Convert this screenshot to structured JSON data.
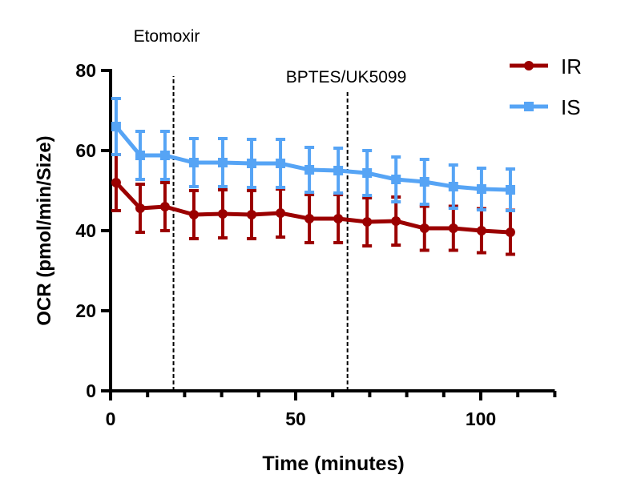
{
  "chart_data": {
    "type": "line",
    "xlabel": "Time (minutes)",
    "ylabel": "OCR (pmol/min/Size)",
    "xlim": [
      0,
      120
    ],
    "ylim": [
      0,
      80
    ],
    "xticks": [
      0,
      50,
      100
    ],
    "yticks": [
      0,
      20,
      40,
      60,
      80
    ],
    "grid": false,
    "legend_position": "top-right",
    "annotations": [
      {
        "label": "Etomoxir",
        "x": 17
      },
      {
        "label": "BPTES/UK5099",
        "x": 64
      }
    ],
    "x": [
      1.5,
      8,
      14.7,
      22.5,
      30.3,
      38.1,
      45.9,
      53.7,
      61.5,
      69.3,
      77.1,
      84.8,
      92.6,
      100.2,
      108
    ],
    "series": [
      {
        "name": "IR",
        "color": "#9b0000",
        "marker": "circle",
        "values": [
          52,
          45.6,
          46,
          44,
          44.2,
          44,
          44.4,
          43,
          43,
          42.2,
          42.4,
          40.6,
          40.6,
          40,
          39.6
        ],
        "error": [
          7,
          6,
          6,
          6,
          6,
          6,
          6,
          6,
          6,
          6,
          6,
          5.5,
          5.5,
          5.5,
          5.5
        ]
      },
      {
        "name": "IS",
        "color": "#56a4f5",
        "marker": "square",
        "values": [
          66,
          58.8,
          58.8,
          57,
          57,
          56.8,
          56.8,
          55.2,
          55,
          54.4,
          52.8,
          52.2,
          51,
          50.4,
          50.2
        ],
        "error": [
          7,
          6,
          6,
          6,
          6,
          6,
          6,
          5.6,
          5.6,
          5.6,
          5.6,
          5.6,
          5.4,
          5.2,
          5.2
        ]
      }
    ]
  }
}
